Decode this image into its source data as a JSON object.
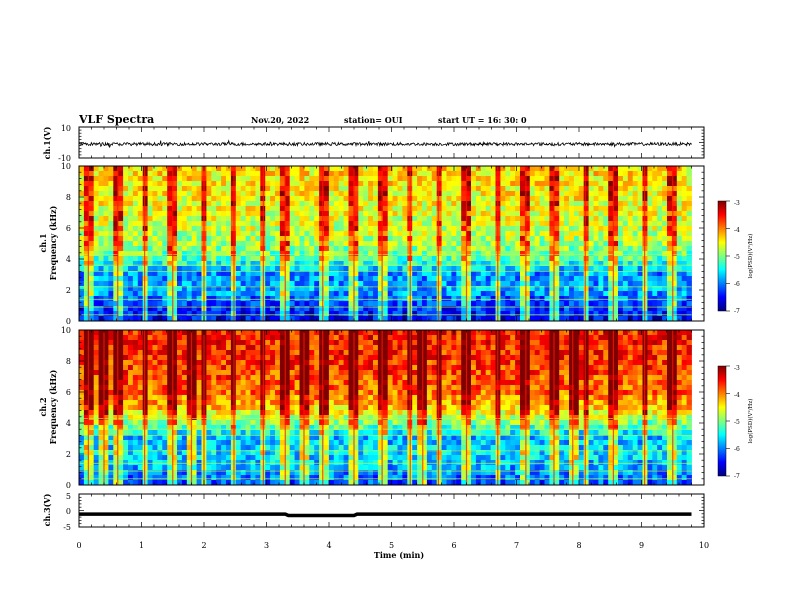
{
  "header": {
    "title": "VLF Spectra",
    "date": "Nov.20, 2022",
    "station": "station= OUI",
    "start": "start  UT =   16: 30: 0"
  },
  "colors": {
    "colormap": [
      "#00007f",
      "#0000ff",
      "#007fff",
      "#00ffff",
      "#7fff7f",
      "#ffff00",
      "#ff7f00",
      "#ff0000",
      "#7f0000"
    ]
  },
  "chart_data": [
    {
      "type": "line",
      "ylabel": "ch.1(V)",
      "ylim": [
        -10,
        10
      ],
      "yticks": [
        "10",
        "-10"
      ],
      "description_values": {
        "baseline": -1,
        "noise_amplitude": 1
      }
    },
    {
      "type": "heatmap",
      "ylabel": "ch.1\nFrequency (kHz)",
      "ylabel_line1": "ch.1",
      "ylabel_line2": "Frequency (kHz)",
      "ylim": [
        0,
        10
      ],
      "yticks": [
        "0",
        "2",
        "4",
        "6",
        "8",
        "10"
      ],
      "colorbar": {
        "label": "log(PSD)(V²/Hz)",
        "range": [
          -7,
          -3
        ],
        "ticks": [
          "-3",
          "-4",
          "-5",
          "-6",
          "-7"
        ]
      },
      "level_profile_khz": [
        0,
        1,
        2,
        3,
        4,
        5,
        6,
        8,
        10
      ],
      "level_profile_values": [
        -6.6,
        -6.3,
        -5.8,
        -6.0,
        -5.2,
        -4.9,
        -4.7,
        -4.5,
        -4.4
      ]
    },
    {
      "type": "heatmap",
      "ylabel": "ch.2\nFrequency (kHz)",
      "ylabel_line1": "ch.2",
      "ylabel_line2": "Frequency (kHz)",
      "ylim": [
        0,
        10
      ],
      "yticks": [
        "0",
        "2",
        "4",
        "6",
        "8",
        "10"
      ],
      "colorbar": {
        "label": "log(PSD)(V²/Hz)",
        "range": [
          -7,
          -3
        ],
        "ticks": [
          "-3",
          "-4",
          "-5",
          "-6",
          "-7"
        ]
      },
      "level_profile_khz": [
        0,
        1,
        2,
        3,
        4,
        5,
        6,
        8,
        10
      ],
      "level_profile_values": [
        -6.2,
        -5.9,
        -5.6,
        -5.8,
        -5.0,
        -4.3,
        -3.9,
        -3.7,
        -3.6
      ]
    },
    {
      "type": "line",
      "ylabel": "ch.3(V)",
      "ylim": [
        -5,
        5
      ],
      "yticks": [
        "5",
        "0",
        "-5"
      ],
      "x": [
        0,
        3.3,
        3.35,
        4.4,
        4.45,
        9.8
      ],
      "y": [
        -1.1,
        -1.1,
        -1.5,
        -1.5,
        -1.1,
        -1.1
      ]
    }
  ],
  "xaxis": {
    "label": "Time (min)",
    "xlim": [
      0,
      10
    ],
    "ticks": [
      "0",
      "1",
      "2",
      "3",
      "4",
      "5",
      "6",
      "7",
      "8",
      "9",
      "10"
    ],
    "data_end": 9.8
  }
}
